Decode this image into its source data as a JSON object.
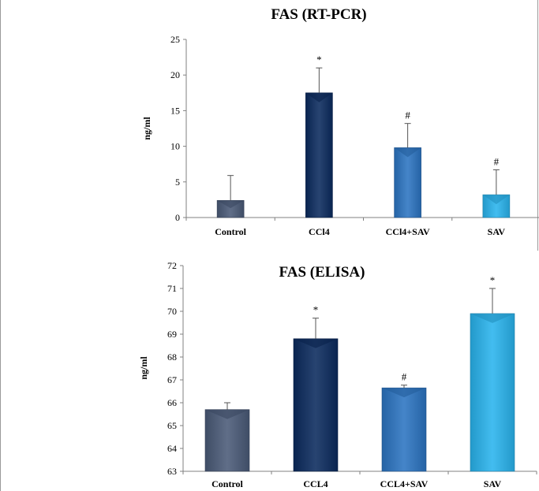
{
  "chart_data": [
    {
      "type": "bar",
      "title": "FAS (RT-PCR)",
      "ylabel": "ng/ml",
      "xlabel": "",
      "categories": [
        "Control",
        "CCl4",
        "CCl4+SAV",
        "SAV"
      ],
      "values": [
        2.4,
        17.5,
        9.8,
        3.2
      ],
      "errors": [
        3.5,
        3.5,
        3.4,
        3.5
      ],
      "annotations": [
        "",
        "*",
        "#",
        "#"
      ],
      "ylim": [
        0,
        25
      ],
      "yticks": [
        "0",
        "5",
        "10",
        "15",
        "20",
        "25"
      ],
      "colors": [
        "#4a5a78",
        "#0b2a5e",
        "#2c74c2",
        "#29b4ee"
      ],
      "grid": false,
      "legend": "none"
    },
    {
      "type": "bar",
      "title": "FAS (ELISA)",
      "ylabel": "ng/ml",
      "xlabel": "",
      "categories": [
        "Control",
        "CCL4",
        "CCL4+SAV",
        "SAV"
      ],
      "values": [
        65.7,
        68.8,
        66.65,
        69.9
      ],
      "errors": [
        0.3,
        0.9,
        0.12,
        1.1
      ],
      "annotations": [
        "",
        "*",
        "#",
        "*"
      ],
      "ylim": [
        63,
        72
      ],
      "yticks": [
        "63",
        "64",
        "65",
        "66",
        "67",
        "68",
        "69",
        "70",
        "71",
        "72"
      ],
      "colors": [
        "#4a5a78",
        "#0b2a5e",
        "#2c74c2",
        "#29b4ee"
      ],
      "grid": false,
      "legend": "none"
    }
  ]
}
